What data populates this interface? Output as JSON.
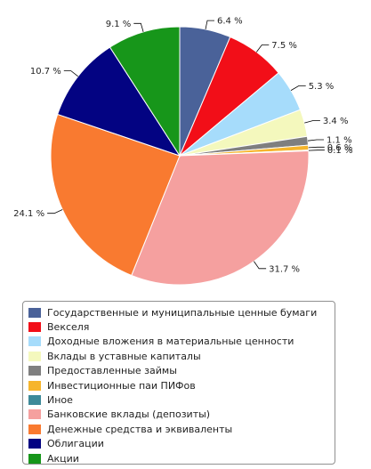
{
  "chart_data": {
    "type": "pie",
    "title": "",
    "slices": [
      {
        "label": "Государственные и муниципальные ценные бумаги",
        "value": 6.4,
        "value_label": "6.4 %",
        "color": "#4a6299"
      },
      {
        "label": "Векселя",
        "value": 7.5,
        "value_label": "7.5 %",
        "color": "#f20e18"
      },
      {
        "label": "Доходные вложения в материальные ценности",
        "value": 5.3,
        "value_label": "5.3 %",
        "color": "#a6dcfb"
      },
      {
        "label": "Вклады в уставные капиталы",
        "value": 3.4,
        "value_label": "3.4 %",
        "color": "#f4f8bd"
      },
      {
        "label": "Предоставленные займы",
        "value": 1.1,
        "value_label": "1.1 %",
        "color": "#7f7f7f"
      },
      {
        "label": "Инвестиционные паи ПИФов",
        "value": 0.6,
        "value_label": "0.6 %",
        "color": "#f6b52c"
      },
      {
        "label": "Иное",
        "value": 0.1,
        "value_label": "0.1 %",
        "color": "#3d8a99"
      },
      {
        "label": "Банковские вклады (депозиты)",
        "value": 31.7,
        "value_label": "31.7 %",
        "color": "#f5a09f"
      },
      {
        "label": "Денежные средства и эквиваленты",
        "value": 24.1,
        "value_label": "24.1 %",
        "color": "#f97a30"
      },
      {
        "label": "Облигации",
        "value": 10.7,
        "value_label": "10.7 %",
        "color": "#030382"
      },
      {
        "label": "Акции",
        "value": 9.1,
        "value_label": "9.1 %",
        "color": "#17961a"
      }
    ],
    "legend_position": "bottom"
  }
}
